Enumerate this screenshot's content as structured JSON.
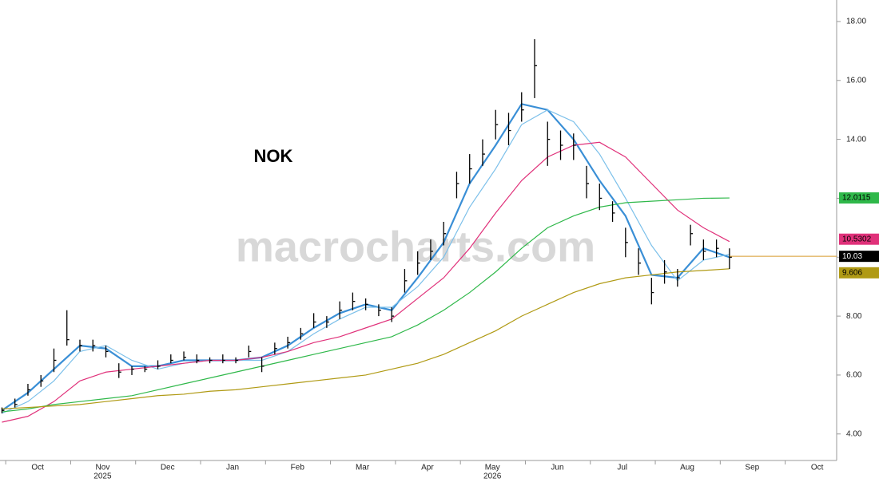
{
  "chart_data": {
    "type": "ohlc",
    "title": "NOK",
    "watermark": "macrocharts.com",
    "xlim": [
      0.42,
      13.3
    ],
    "ylim": [
      3.1,
      18.73
    ],
    "xticks": [
      {
        "value": 1,
        "label": "Oct"
      },
      {
        "value": 2,
        "label": "Nov"
      },
      {
        "value": 3,
        "label": "Dec"
      },
      {
        "value": 4,
        "label": "Jan"
      },
      {
        "value": 5,
        "label": "Feb"
      },
      {
        "value": 6,
        "label": "Mar"
      },
      {
        "value": 7,
        "label": "Apr"
      },
      {
        "value": 8,
        "label": "May"
      },
      {
        "value": 9,
        "label": "Jun"
      },
      {
        "value": 10,
        "label": "Jul"
      },
      {
        "value": 11,
        "label": "Aug"
      },
      {
        "value": 12,
        "label": "Sep"
      },
      {
        "value": 13,
        "label": "Oct"
      }
    ],
    "year_labels": [
      {
        "value": 2,
        "label": "2025"
      },
      {
        "value": 8,
        "label": "2026"
      }
    ],
    "yticks": [
      {
        "value": 4,
        "label": "4.00"
      },
      {
        "value": 6,
        "label": "6.00"
      },
      {
        "value": 8,
        "label": "8.00"
      },
      {
        "value": 10,
        "label": "10.00"
      },
      {
        "value": 12,
        "label": "12.00"
      },
      {
        "value": 14,
        "label": "14.00"
      },
      {
        "value": 16,
        "label": "16.00"
      },
      {
        "value": 18,
        "label": "18.00"
      }
    ],
    "price": {
      "color": "#000000",
      "x": [
        0.45,
        0.65,
        0.85,
        1.05,
        1.25,
        1.45,
        1.65,
        1.85,
        2.05,
        2.25,
        2.45,
        2.65,
        2.85,
        3.05,
        3.25,
        3.45,
        3.65,
        3.85,
        4.05,
        4.25,
        4.45,
        4.65,
        4.85,
        5.05,
        5.25,
        5.45,
        5.65,
        5.85,
        6.05,
        6.25,
        6.45,
        6.65,
        6.85,
        7.05,
        7.25,
        7.45,
        7.65,
        7.85,
        8.05,
        8.25,
        8.45,
        8.65,
        8.85,
        9.05,
        9.25,
        9.45,
        9.65,
        9.85,
        10.05,
        10.25,
        10.45,
        10.65,
        10.85,
        11.05,
        11.25,
        11.45,
        11.65
      ],
      "high": [
        4.9,
        5.2,
        5.7,
        6.0,
        6.9,
        8.2,
        7.2,
        7.2,
        7.0,
        6.4,
        6.3,
        6.3,
        6.5,
        6.7,
        6.8,
        6.7,
        6.6,
        6.7,
        6.6,
        7.0,
        6.6,
        7.1,
        7.3,
        7.6,
        8.1,
        8.0,
        8.5,
        8.8,
        8.6,
        8.4,
        8.3,
        9.6,
        10.2,
        10.6,
        11.2,
        12.9,
        13.5,
        14.0,
        15.0,
        14.9,
        15.6,
        17.4,
        14.6,
        14.3,
        14.2,
        13.1,
        12.5,
        11.9,
        11.0,
        10.3,
        9.3,
        9.9,
        9.6,
        11.1,
        10.6,
        10.6,
        10.3
      ],
      "low": [
        4.7,
        4.9,
        5.3,
        5.6,
        6.1,
        7.0,
        6.8,
        6.8,
        6.6,
        5.9,
        6.0,
        6.1,
        6.2,
        6.4,
        6.5,
        6.4,
        6.4,
        6.4,
        6.4,
        6.6,
        6.1,
        6.7,
        6.9,
        7.2,
        7.6,
        7.6,
        7.9,
        8.2,
        8.2,
        8.0,
        7.8,
        8.8,
        9.4,
        9.9,
        10.4,
        12.0,
        12.5,
        13.1,
        14.0,
        13.8,
        14.6,
        15.4,
        13.1,
        13.3,
        13.3,
        12.0,
        11.6,
        11.2,
        10.0,
        9.4,
        8.4,
        9.1,
        9.0,
        10.4,
        9.9,
        10.0,
        9.6
      ],
      "close": [
        4.8,
        5.0,
        5.5,
        5.8,
        6.5,
        7.2,
        7.0,
        7.0,
        6.8,
        6.1,
        6.2,
        6.2,
        6.3,
        6.5,
        6.6,
        6.5,
        6.5,
        6.5,
        6.5,
        6.8,
        6.3,
        6.9,
        7.1,
        7.4,
        7.8,
        7.8,
        8.2,
        8.5,
        8.4,
        8.2,
        8.0,
        9.2,
        9.8,
        10.2,
        10.8,
        12.5,
        13.0,
        13.5,
        14.5,
        14.3,
        15.0,
        16.5,
        14.0,
        13.8,
        13.8,
        12.5,
        12.0,
        11.5,
        10.5,
        9.8,
        8.8,
        9.5,
        9.3,
        10.8,
        10.2,
        10.3,
        10.0
      ]
    },
    "price_line": {
      "value": 10.03,
      "color": "#d79a2b",
      "label_color": "#000000"
    },
    "ma_x": [
      0.45,
      0.85,
      1.25,
      1.65,
      2.05,
      2.45,
      2.85,
      3.25,
      3.65,
      4.05,
      4.45,
      4.85,
      5.25,
      5.65,
      6.05,
      6.45,
      6.85,
      7.25,
      7.65,
      8.05,
      8.45,
      8.85,
      9.25,
      9.65,
      10.05,
      10.45,
      10.85,
      11.25,
      11.65
    ],
    "series": [
      {
        "color": "#3a8fd6",
        "width": 2.2,
        "values": [
          4.8,
          5.4,
          6.2,
          7.0,
          6.9,
          6.3,
          6.3,
          6.5,
          6.5,
          6.5,
          6.6,
          7.0,
          7.6,
          8.1,
          8.4,
          8.2,
          9.3,
          10.5,
          12.5,
          13.8,
          15.2,
          15.0,
          14.0,
          12.6,
          11.4,
          9.4,
          9.3,
          10.3,
          10.0
        ]
      },
      {
        "color": "#7cc0ea",
        "width": 1.2,
        "values": [
          4.7,
          5.1,
          5.8,
          6.8,
          7.0,
          6.5,
          6.2,
          6.4,
          6.5,
          6.5,
          6.5,
          6.8,
          7.4,
          7.9,
          8.3,
          8.3,
          9.0,
          10.0,
          11.7,
          13.0,
          14.5,
          15.0,
          14.6,
          13.5,
          12.0,
          10.4,
          9.2,
          9.9,
          10.1
        ]
      },
      {
        "color": "#e0317a",
        "width": 1.2,
        "last_value": 10.5302,
        "values": [
          4.4,
          4.6,
          5.1,
          5.8,
          6.1,
          6.2,
          6.3,
          6.4,
          6.5,
          6.5,
          6.6,
          6.8,
          7.1,
          7.3,
          7.6,
          7.9,
          8.6,
          9.3,
          10.3,
          11.5,
          12.6,
          13.4,
          13.8,
          13.9,
          13.4,
          12.5,
          11.6,
          11.0,
          10.53
        ]
      },
      {
        "color": "#2fb84a",
        "width": 1.2,
        "last_value": 12.0115,
        "values": [
          4.75,
          4.85,
          5.0,
          5.1,
          5.2,
          5.3,
          5.5,
          5.7,
          5.9,
          6.1,
          6.3,
          6.5,
          6.7,
          6.9,
          7.1,
          7.3,
          7.7,
          8.2,
          8.8,
          9.5,
          10.3,
          11.0,
          11.4,
          11.7,
          11.85,
          11.9,
          11.95,
          12.0,
          12.01
        ]
      },
      {
        "color": "#b09a14",
        "width": 1.2,
        "last_value": 9.606,
        "values": [
          4.85,
          4.9,
          4.95,
          5.0,
          5.1,
          5.2,
          5.3,
          5.35,
          5.45,
          5.5,
          5.6,
          5.7,
          5.8,
          5.9,
          6.0,
          6.2,
          6.4,
          6.7,
          7.1,
          7.5,
          8.0,
          8.4,
          8.8,
          9.1,
          9.3,
          9.4,
          9.5,
          9.55,
          9.606
        ]
      }
    ]
  }
}
